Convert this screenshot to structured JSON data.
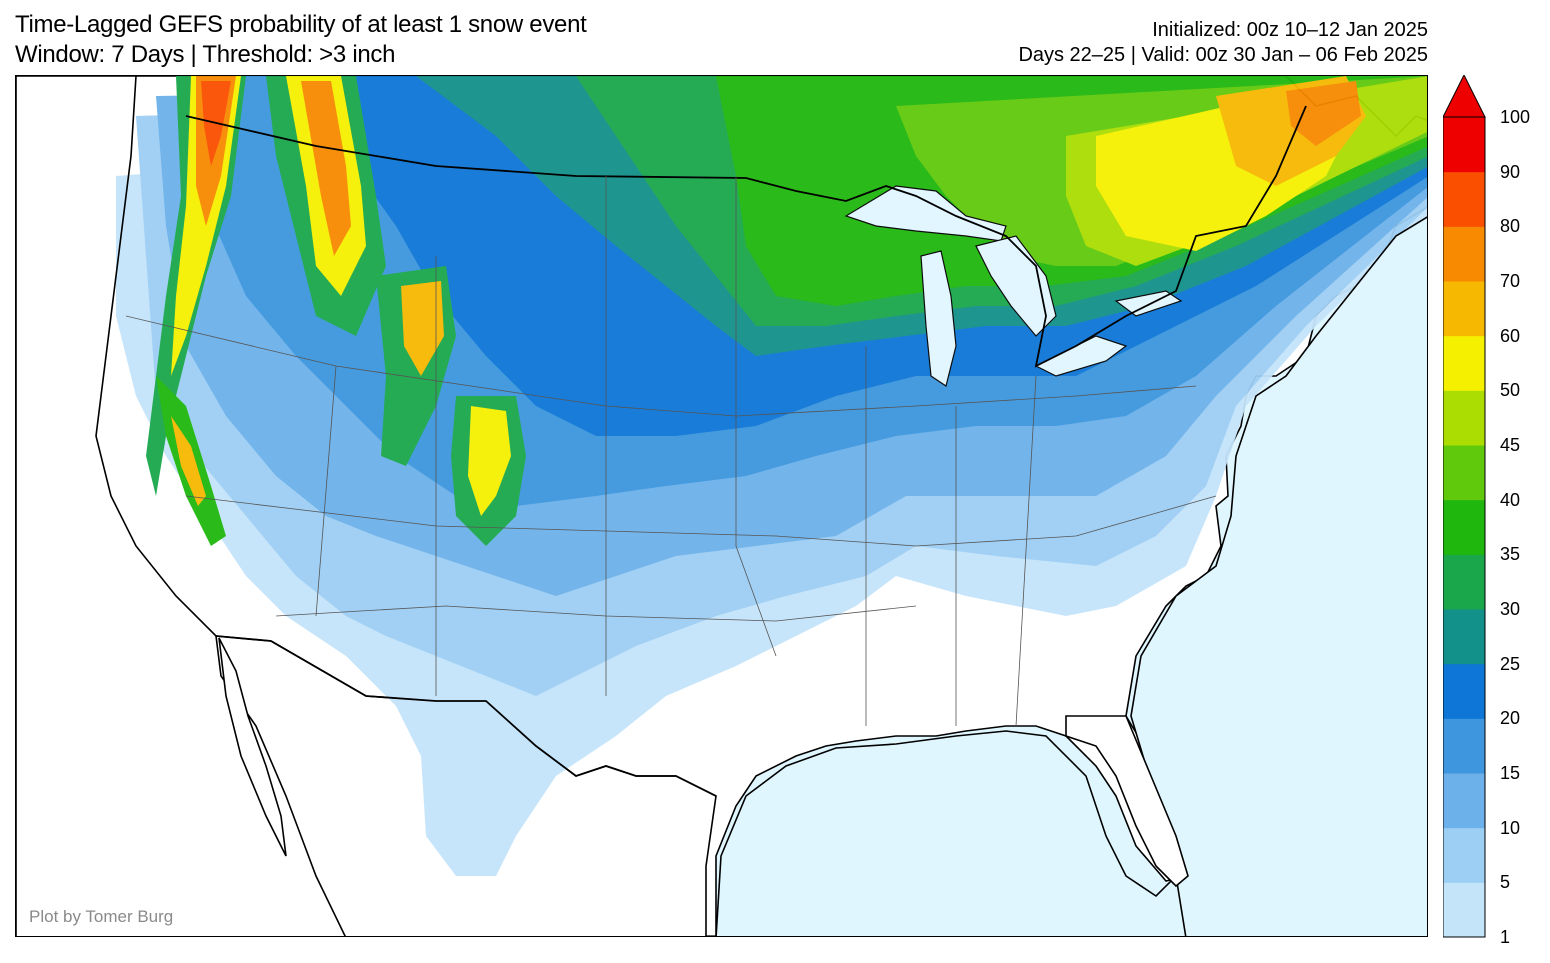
{
  "header": {
    "title_line1": "Time-Lagged GEFS probability of at least 1 snow event",
    "title_line2": "Window: 7 Days | Threshold: >3 inch",
    "init_line": "Initialized: 00z 10–12 Jan 2025",
    "valid_line": "Days 22–25 | Valid: 00z 30 Jan – 06 Feb 2025"
  },
  "credit": "Plot by Tomer Burg",
  "colors": {
    "ocean": "#e0f6fe",
    "land": "#ffffff",
    "border": "#000000"
  },
  "colorbar": {
    "levels": [
      "1",
      "5",
      "10",
      "15",
      "20",
      "25",
      "30",
      "35",
      "40",
      "45",
      "50",
      "60",
      "70",
      "80",
      "90",
      "100"
    ],
    "colors": [
      "#c4e4fa",
      "#9dcef4",
      "#6cb1ea",
      "#3d96de",
      "#0d76d6",
      "#12918a",
      "#1aa74b",
      "#1fb70e",
      "#60c90c",
      "#abdd03",
      "#f5f000",
      "#f6b800",
      "#f78a00",
      "#fb4f00",
      "#ee0000"
    ],
    "extend": "max"
  }
}
